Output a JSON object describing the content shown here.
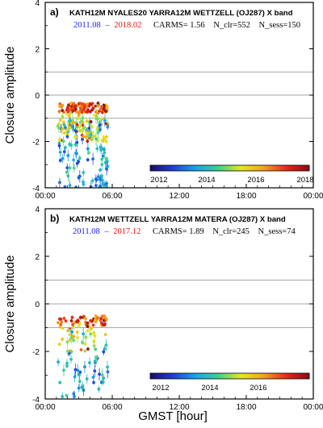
{
  "figure": {
    "ylabel": "Closure amplitude",
    "xlabel": "GMST [hour]"
  },
  "colors": {
    "start_date": "#1a1aff",
    "end_date": "#ee1111",
    "axis": "#000000",
    "ref_line": "#888888"
  },
  "colormap_stops": [
    "#1a0b6e",
    "#1f3fd6",
    "#16a6ee",
    "#3cd28c",
    "#e6e81e",
    "#f4a21e",
    "#e8261c",
    "#8b0d0d"
  ],
  "panels": [
    {
      "tag": "a)",
      "title": "KATH12M NYALES20 YARRA12M WETTZELL  (OJ287) X band",
      "date_start": "2011.08",
      "date_sep": "–",
      "date_end": "2018.02",
      "carms": "CARMS= 1.56",
      "nclr": "N_clr=552",
      "nsess": "N_sess=150",
      "colorbar_ticks": [
        "2012",
        "2014",
        "2016",
        "2018"
      ]
    },
    {
      "tag": "b)",
      "title": "KATH12M WETTZELL YARRA12M MATERA  (OJ287) X band",
      "date_start": "2011.08",
      "date_sep": "–",
      "date_end": "2017.12",
      "carms": "CARMS= 1.89",
      "nclr": "N_clr=245",
      "nsess": "N_sess=74",
      "colorbar_ticks": [
        "2012",
        "2014",
        "2016"
      ]
    }
  ],
  "chart_data": [
    {
      "type": "scatter",
      "title": "KATH12M NYALES20 YARRA12M WETTZELL  (OJ287) X band",
      "xlabel": "",
      "ylabel": "Closure amplitude",
      "xlim": [
        0,
        24
      ],
      "ylim": [
        -4,
        4
      ],
      "x_ticks": [
        "00:00",
        "06:00",
        "12:00",
        "18:00",
        "00:00"
      ],
      "y_ticks": [
        "-4",
        "-2",
        "0",
        "2",
        "4"
      ],
      "reference_lines_y": [
        1,
        0,
        -1
      ],
      "color_scale": {
        "label_ticks": [
          "2012",
          "2014",
          "2016",
          "2018"
        ],
        "range": [
          2011.6,
          2018.1
        ]
      },
      "point_cloud": {
        "x_range": [
          1.1,
          5.6
        ],
        "upper_band_y": [
          -0.75,
          -0.35
        ],
        "lower_extent_y": -4.0,
        "count": 552
      },
      "x_unit": "hour (GMST)"
    },
    {
      "type": "scatter",
      "title": "KATH12M WETTZELL YARRA12M MATERA  (OJ287) X band",
      "xlabel": "GMST [hour]",
      "ylabel": "Closure amplitude",
      "xlim": [
        0,
        24
      ],
      "ylim": [
        -4,
        4
      ],
      "x_ticks": [
        "00:00",
        "06:00",
        "12:00",
        "18:00",
        "00:00"
      ],
      "y_ticks": [
        "-4",
        "-2",
        "0",
        "2",
        "4"
      ],
      "reference_lines_y": [
        1,
        0,
        -1
      ],
      "color_scale": {
        "label_ticks": [
          "2012",
          "2014",
          "2016"
        ],
        "range": [
          2011.6,
          2018.1
        ]
      },
      "point_cloud": {
        "x_range": [
          1.1,
          5.6
        ],
        "upper_band_y": [
          -0.9,
          -0.5
        ],
        "lower_extent_y": -3.9,
        "count": 245
      },
      "x_unit": "hour (GMST)"
    }
  ]
}
